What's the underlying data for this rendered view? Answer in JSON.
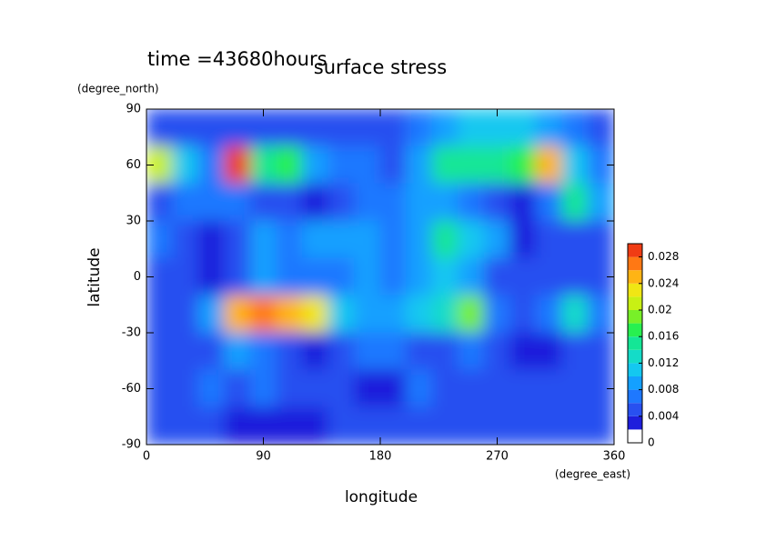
{
  "chart_data": {
    "type": "contour",
    "subtitle": "time =43680hours",
    "title": "surface stress",
    "x_label": "longitude",
    "x_unit_label": "(degree_east)",
    "y_label": "latitude",
    "y_unit_label": "(degree_north)",
    "xlim": [
      0,
      360
    ],
    "ylim": [
      -90,
      90
    ],
    "xticks": [
      0,
      90,
      180,
      270,
      360
    ],
    "yticks": [
      -90,
      -60,
      -30,
      0,
      30,
      60,
      90
    ],
    "x": [
      10,
      30,
      50,
      70,
      90,
      110,
      130,
      150,
      170,
      190,
      210,
      230,
      250,
      270,
      290,
      310,
      330,
      350
    ],
    "y": [
      80,
      60,
      40,
      20,
      0,
      -20,
      -40,
      -60,
      -80
    ],
    "z": [
      [
        0.004,
        0.004,
        0.004,
        0.004,
        0.004,
        0.005,
        0.004,
        0.004,
        0.004,
        0.004,
        0.006,
        0.008,
        0.01,
        0.01,
        0.01,
        0.008,
        0.006,
        0.005
      ],
      [
        0.02,
        0.01,
        0.006,
        0.028,
        0.014,
        0.016,
        0.008,
        0.006,
        0.006,
        0.004,
        0.008,
        0.014,
        0.014,
        0.014,
        0.016,
        0.024,
        0.01,
        0.006
      ],
      [
        0.004,
        0.006,
        0.006,
        0.006,
        0.004,
        0.004,
        0.002,
        0.004,
        0.006,
        0.006,
        0.008,
        0.008,
        0.006,
        0.004,
        0.002,
        0.006,
        0.014,
        0.008
      ],
      [
        0.006,
        0.004,
        0.002,
        0.004,
        0.008,
        0.006,
        0.008,
        0.008,
        0.008,
        0.006,
        0.008,
        0.014,
        0.01,
        0.008,
        0.002,
        0.004,
        0.004,
        0.004
      ],
      [
        0.004,
        0.004,
        0.002,
        0.004,
        0.008,
        0.006,
        0.006,
        0.006,
        0.008,
        0.006,
        0.008,
        0.01,
        0.008,
        0.004,
        0.004,
        0.004,
        0.004,
        0.004
      ],
      [
        0.004,
        0.004,
        0.008,
        0.024,
        0.026,
        0.024,
        0.022,
        0.01,
        0.008,
        0.008,
        0.01,
        0.012,
        0.018,
        0.006,
        0.004,
        0.006,
        0.012,
        0.006
      ],
      [
        0.004,
        0.004,
        0.004,
        0.008,
        0.006,
        0.004,
        0.002,
        0.004,
        0.006,
        0.006,
        0.004,
        0.004,
        0.006,
        0.004,
        0.002,
        0.002,
        0.004,
        0.004
      ],
      [
        0.004,
        0.004,
        0.006,
        0.004,
        0.006,
        0.004,
        0.004,
        0.004,
        0.002,
        0.002,
        0.006,
        0.004,
        0.004,
        0.004,
        0.004,
        0.004,
        0.004,
        0.004
      ],
      [
        0.004,
        0.004,
        0.004,
        0.002,
        0.002,
        0.002,
        0.002,
        0.004,
        0.004,
        0.004,
        0.004,
        0.004,
        0.004,
        0.004,
        0.004,
        0.004,
        0.004,
        0.004
      ]
    ],
    "colorbar": {
      "levels": [
        0,
        0.002,
        0.004,
        0.006,
        0.008,
        0.01,
        0.012,
        0.014,
        0.016,
        0.018,
        0.02,
        0.022,
        0.024,
        0.026,
        0.028,
        0.03
      ],
      "colors": [
        "#ffffff",
        "#1e1edc",
        "#2850f0",
        "#1e78ff",
        "#14a0ff",
        "#14c8f0",
        "#14dcc8",
        "#14e696",
        "#28f050",
        "#78f028",
        "#c8f014",
        "#f0e614",
        "#ffb414",
        "#ff7814",
        "#f03c14"
      ],
      "ticks": [
        0,
        0.004,
        0.008,
        0.012,
        0.016,
        0.02,
        0.024,
        0.028
      ]
    }
  }
}
